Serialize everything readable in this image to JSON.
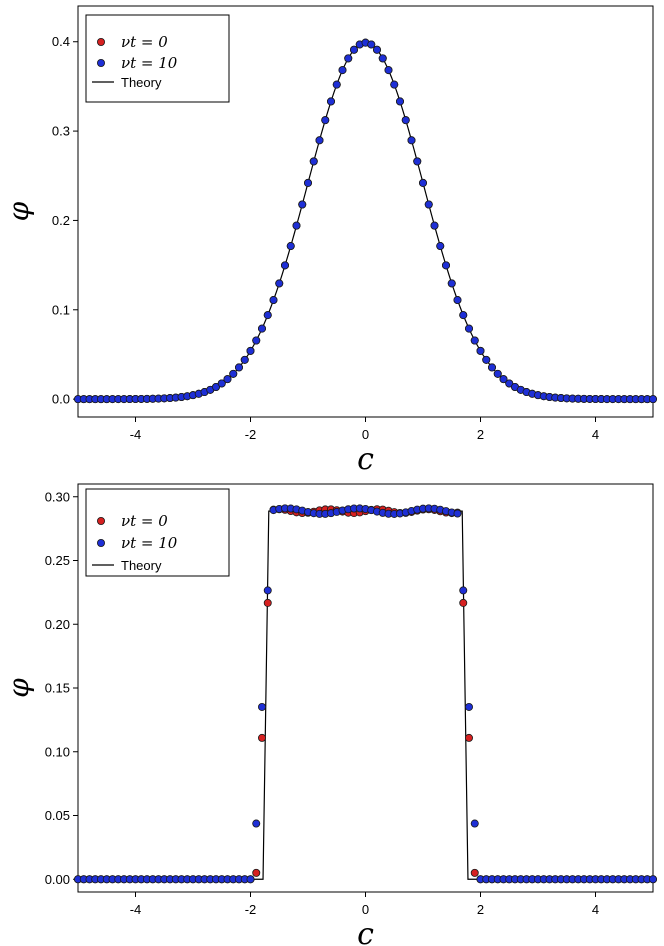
{
  "chart_data": [
    {
      "type": "scatter",
      "title": "",
      "xlabel": "c",
      "ylabel": "φ",
      "xlim": [
        -5,
        5
      ],
      "ylim": [
        -0.02,
        0.44
      ],
      "xticks": [
        -4,
        -2,
        0,
        2,
        4
      ],
      "xtick_labels": [
        "-4",
        "-2",
        "0",
        "2",
        "4"
      ],
      "yticks": [
        0.0,
        0.1,
        0.2,
        0.3,
        0.4
      ],
      "ytick_labels": [
        "0.0",
        "0.1",
        "0.2",
        "0.3",
        "0.4"
      ],
      "legend_position": "top-left",
      "grid": false,
      "theory": "gaussian",
      "series": [
        {
          "name": "νt = 0",
          "color": "#d62020"
        },
        {
          "name": "νt = 10",
          "color": "#1e2fd6"
        },
        {
          "name": "Theory",
          "color": "#000000"
        }
      ]
    },
    {
      "type": "scatter",
      "title": "",
      "xlabel": "c",
      "ylabel": "φ",
      "xlim": [
        -5,
        5
      ],
      "ylim": [
        -0.01,
        0.31
      ],
      "xticks": [
        -4,
        -2,
        0,
        2,
        4
      ],
      "xtick_labels": [
        "-4",
        "-2",
        "0",
        "2",
        "4"
      ],
      "yticks": [
        0.0,
        0.05,
        0.1,
        0.15,
        0.2,
        0.25,
        0.3
      ],
      "ytick_labels": [
        "0.00",
        "0.05",
        "0.10",
        "0.15",
        "0.20",
        "0.25",
        "0.30"
      ],
      "legend_position": "top-left",
      "grid": false,
      "theory": "uniform",
      "uniform_height": 0.2887,
      "uniform_half_width": 1.732,
      "series": [
        {
          "name": "νt = 0",
          "color": "#d62020"
        },
        {
          "name": "νt = 10",
          "color": "#1e2fd6"
        },
        {
          "name": "Theory",
          "color": "#000000"
        }
      ]
    }
  ]
}
